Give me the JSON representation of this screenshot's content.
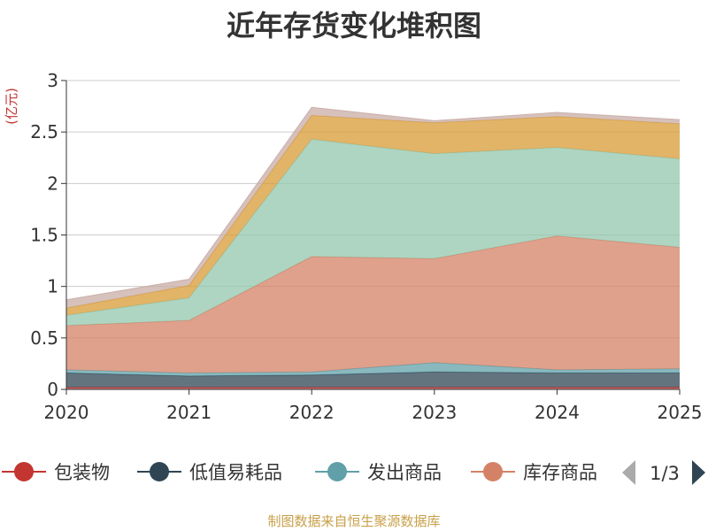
{
  "chart_data": {
    "type": "area",
    "stacked": true,
    "title": "近年存货变化堆积图",
    "ylabel": "亿元",
    "x": [
      "2020",
      "2021",
      "2022",
      "2023",
      "2024",
      "2025"
    ],
    "ylim": [
      0,
      3
    ],
    "yticks": [
      "0",
      "0.5",
      "1",
      "1.5",
      "2",
      "2.5",
      "3"
    ],
    "grid": true,
    "series": [
      {
        "name": "包装物",
        "color": "#c23531",
        "values": [
          0.02,
          0.02,
          0.02,
          0.02,
          0.02,
          0.02
        ]
      },
      {
        "name": "低值易耗品",
        "color": "#2f4554",
        "values": [
          0.14,
          0.11,
          0.12,
          0.15,
          0.14,
          0.14
        ]
      },
      {
        "name": "发出商品",
        "color": "#61a0a8",
        "values": [
          0.03,
          0.03,
          0.03,
          0.09,
          0.03,
          0.04
        ]
      },
      {
        "name": "库存商品",
        "color": "#d48265",
        "values": [
          0.43,
          0.51,
          1.12,
          1.01,
          1.3,
          1.18
        ]
      },
      {
        "name": "",
        "color": "#91c7ae",
        "values": [
          0.1,
          0.22,
          1.14,
          1.02,
          0.86,
          0.86
        ]
      },
      {
        "name": "",
        "color": "#d89b35",
        "values": [
          0.07,
          0.12,
          0.23,
          0.3,
          0.3,
          0.34
        ]
      },
      {
        "name": "",
        "color": "#c8aca6",
        "values": [
          0.08,
          0.06,
          0.08,
          0.02,
          0.04,
          0.04
        ]
      }
    ],
    "legend": {
      "position": "bottom",
      "visible_items": [
        "包装物",
        "低值易耗品",
        "发出商品",
        "库存商品"
      ],
      "page_indicator": "1/3"
    }
  },
  "footer": {
    "source": "制图数据来自恒生聚源数据库"
  }
}
